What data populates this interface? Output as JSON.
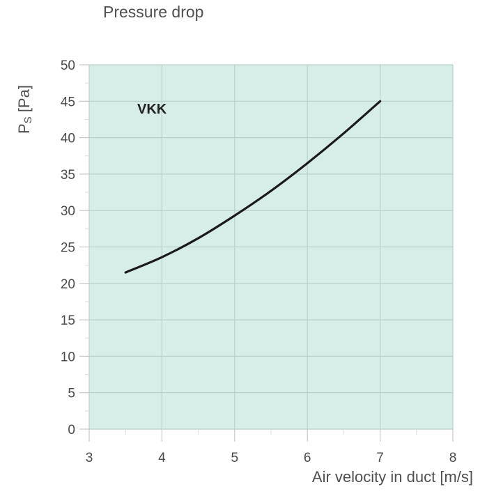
{
  "chart": {
    "title": "Pressure drop",
    "ylabel_main": "P",
    "ylabel_sub": "S",
    "ylabel_unit": " [Pa]",
    "xlabel": "Air velocity in duct [m/s]",
    "series_label": "VKK"
  },
  "colors": {
    "plot_background": "#d6ede8",
    "grid": "#b9cfca",
    "curve": "#1a1a1a",
    "text": "#4a4a4a"
  },
  "chart_data": {
    "type": "line",
    "title": "Pressure drop",
    "xlabel": "Air velocity in duct [m/s]",
    "ylabel": "Ps [Pa]",
    "xlim": [
      3,
      8
    ],
    "ylim": [
      0,
      50
    ],
    "x_ticks": [
      3,
      4,
      5,
      6,
      7,
      8
    ],
    "y_ticks": [
      0,
      5,
      10,
      15,
      20,
      25,
      30,
      35,
      40,
      45,
      50
    ],
    "grid": true,
    "legend_position": "inline label top-left",
    "series": [
      {
        "name": "VKK",
        "x": [
          3.5,
          4.0,
          4.5,
          5.0,
          5.5,
          6.0,
          6.5,
          7.0
        ],
        "values": [
          21.5,
          23.6,
          26.2,
          29.3,
          32.7,
          36.5,
          40.6,
          45.0
        ]
      }
    ]
  }
}
